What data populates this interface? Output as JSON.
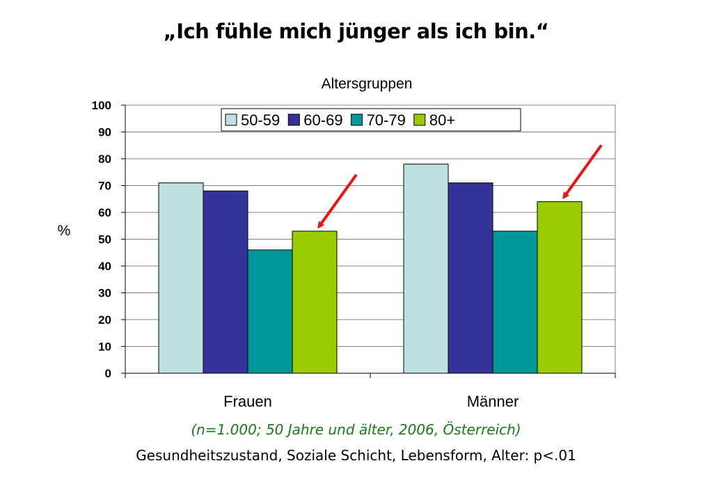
{
  "slide": {
    "title": "„Ich fühle mich jünger als ich bin.“",
    "footnote": "(n=1.000; 50 Jahre und älter, 2006, Österreich)",
    "footer": "Gesundheitszustand, Soziale Schicht, Lebensform, Alter: p<.01"
  },
  "chart_data": {
    "type": "bar",
    "title": "Altersgruppen",
    "xlabel": "",
    "ylabel": "%",
    "categories": [
      "Frauen",
      "Männer"
    ],
    "series": [
      {
        "name": "50-59",
        "values": [
          71,
          78
        ],
        "color": "#bfe0e3"
      },
      {
        "name": "60-69",
        "values": [
          68,
          71
        ],
        "color": "#333399"
      },
      {
        "name": "70-79",
        "values": [
          46,
          53
        ],
        "color": "#009999"
      },
      {
        "name": "80+",
        "values": [
          53,
          64
        ],
        "color": "#99cc00"
      }
    ],
    "ylim": [
      0,
      100
    ],
    "yticks": [
      0,
      10,
      20,
      30,
      40,
      50,
      60,
      70,
      80,
      90,
      100
    ],
    "grid": true,
    "legend": "top",
    "annotations": [
      {
        "type": "arrow",
        "target": "80+ Frauen",
        "color": "#ee1111"
      },
      {
        "type": "arrow",
        "target": "80+ Männer",
        "color": "#ee1111"
      }
    ]
  }
}
